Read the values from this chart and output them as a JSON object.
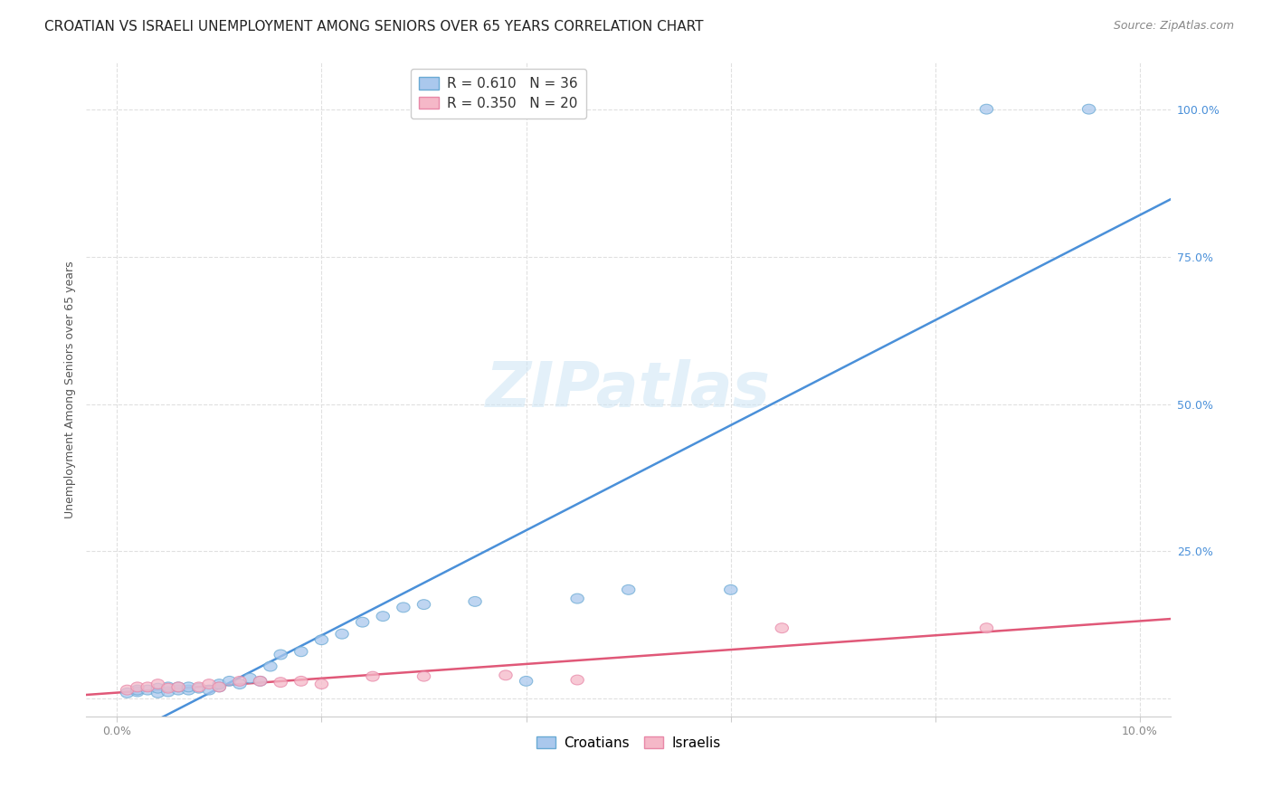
{
  "title": "CROATIAN VS ISRAELI UNEMPLOYMENT AMONG SENIORS OVER 65 YEARS CORRELATION CHART",
  "source": "Source: ZipAtlas.com",
  "ylabel": "Unemployment Among Seniors over 65 years",
  "xlim": [
    -0.003,
    0.103
  ],
  "ylim": [
    -0.03,
    1.08
  ],
  "croatian_R": 0.61,
  "croatian_N": 36,
  "israeli_R": 0.35,
  "israeli_N": 20,
  "croatian_color": "#aac8ed",
  "croatian_edge_color": "#6aaad4",
  "croatian_line_color": "#4a90d9",
  "israeli_color": "#f5b8c8",
  "israeli_edge_color": "#e888a8",
  "israeli_line_color": "#e05878",
  "background_color": "#ffffff",
  "grid_color": "#e0e0e0",
  "croatian_x": [
    0.001,
    0.002,
    0.002,
    0.003,
    0.004,
    0.004,
    0.005,
    0.005,
    0.006,
    0.006,
    0.007,
    0.007,
    0.008,
    0.009,
    0.01,
    0.01,
    0.011,
    0.012,
    0.013,
    0.014,
    0.015,
    0.016,
    0.018,
    0.02,
    0.022,
    0.024,
    0.026,
    0.028,
    0.03,
    0.035,
    0.04,
    0.045,
    0.05,
    0.06,
    0.085,
    0.095
  ],
  "croatian_y": [
    0.01,
    0.012,
    0.015,
    0.015,
    0.01,
    0.018,
    0.012,
    0.02,
    0.015,
    0.02,
    0.015,
    0.02,
    0.018,
    0.015,
    0.02,
    0.025,
    0.03,
    0.025,
    0.035,
    0.03,
    0.055,
    0.075,
    0.08,
    0.1,
    0.11,
    0.13,
    0.14,
    0.155,
    0.16,
    0.165,
    0.03,
    0.17,
    0.185,
    0.185,
    1.0,
    1.0
  ],
  "israeli_x": [
    0.001,
    0.002,
    0.003,
    0.004,
    0.005,
    0.006,
    0.008,
    0.009,
    0.01,
    0.012,
    0.014,
    0.016,
    0.018,
    0.02,
    0.025,
    0.03,
    0.038,
    0.045,
    0.065,
    0.085
  ],
  "israeli_y": [
    0.015,
    0.02,
    0.02,
    0.025,
    0.018,
    0.02,
    0.02,
    0.025,
    0.02,
    0.03,
    0.03,
    0.028,
    0.03,
    0.025,
    0.038,
    0.038,
    0.04,
    0.032,
    0.12,
    0.12
  ],
  "y_ticks": [
    0.0,
    0.25,
    0.5,
    0.75,
    1.0
  ],
  "y_tick_labels": [
    "",
    "25.0%",
    "50.0%",
    "75.0%",
    "100.0%"
  ],
  "x_ticks": [
    0.0,
    0.02,
    0.04,
    0.06,
    0.08,
    0.1
  ],
  "x_tick_labels": [
    "0.0%",
    "",
    "",
    "",
    "",
    "10.0%"
  ],
  "legend_labels": [
    "Croatians",
    "Israelis"
  ],
  "title_fontsize": 11,
  "axis_label_fontsize": 9,
  "tick_fontsize": 9,
  "legend_fontsize": 11,
  "source_fontsize": 9
}
